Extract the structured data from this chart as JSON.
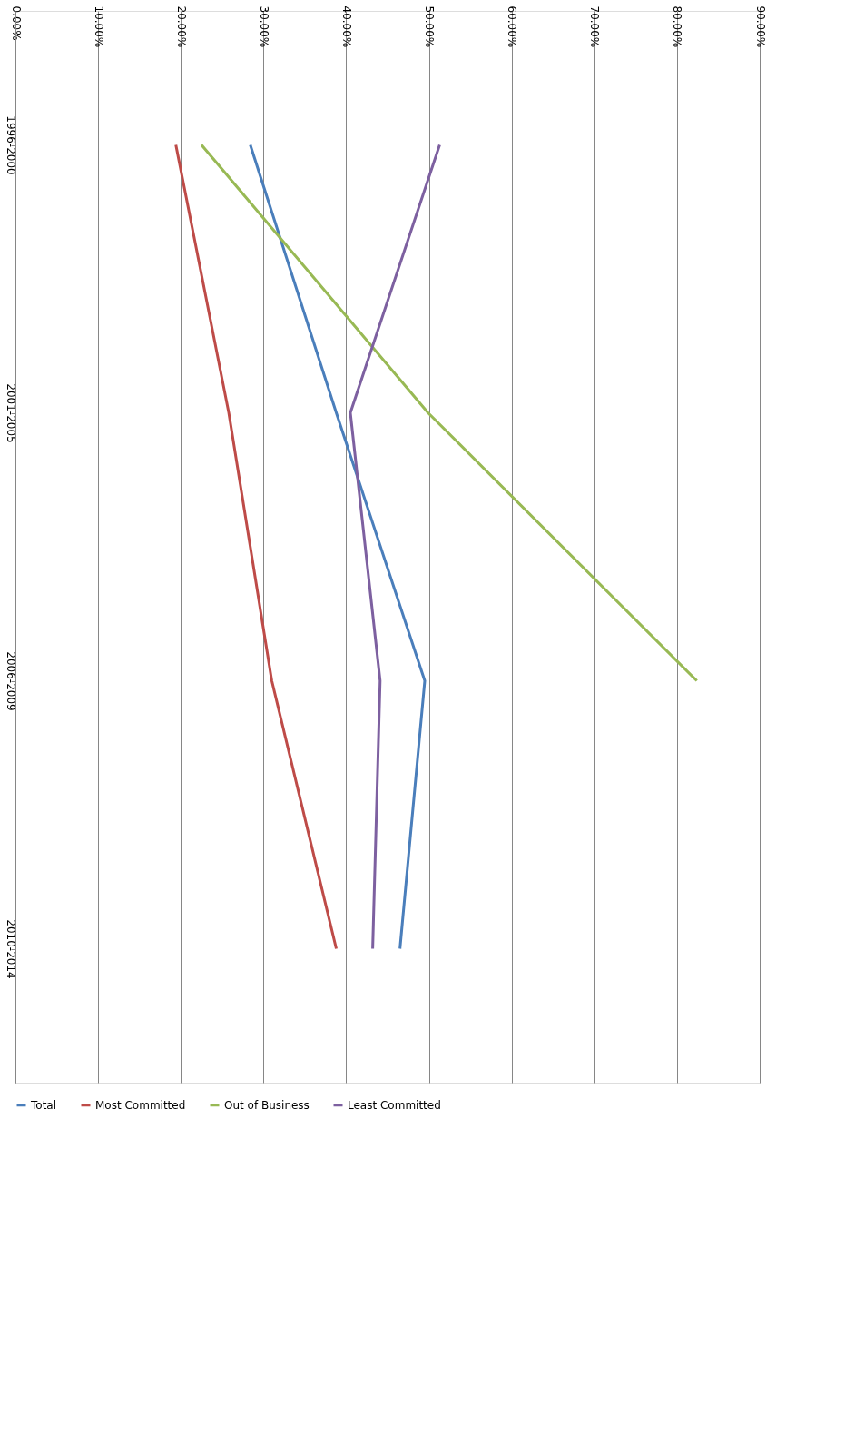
{
  "chart_data": {
    "type": "line",
    "orientation": "horizontal",
    "categories": [
      "1996-2000",
      "2001-2005",
      "2006-2009",
      "2010-2014"
    ],
    "series": [
      {
        "name": "Total",
        "color": "#4a7ebb",
        "values": [
          28.4,
          38.8,
          49.5,
          46.5
        ]
      },
      {
        "name": "Most Committed",
        "color": "#be4b48",
        "values": [
          19.4,
          25.8,
          31.0,
          38.8
        ]
      },
      {
        "name": "Out of Business",
        "color": "#98b954",
        "values": [
          22.5,
          49.9,
          82.4,
          null
        ]
      },
      {
        "name": "Least Committed",
        "color": "#7d60a0",
        "values": [
          51.3,
          40.5,
          44.1,
          43.2
        ]
      }
    ],
    "xlim": [
      0,
      90
    ],
    "xticks": [
      {
        "value": 0,
        "label": "0.00%"
      },
      {
        "value": 10,
        "label": "10.00%"
      },
      {
        "value": 20,
        "label": "20.00%"
      },
      {
        "value": 30,
        "label": "30.00%"
      },
      {
        "value": 40,
        "label": "40.00%"
      },
      {
        "value": 50,
        "label": "50.00%"
      },
      {
        "value": 60,
        "label": "60.00%"
      },
      {
        "value": 70,
        "label": "70.00%"
      },
      {
        "value": 80,
        "label": "80.00%"
      },
      {
        "value": 90,
        "label": "90.00%"
      }
    ],
    "grid": "x",
    "legend": "bottom",
    "marker": "none",
    "line_style": "solid"
  }
}
